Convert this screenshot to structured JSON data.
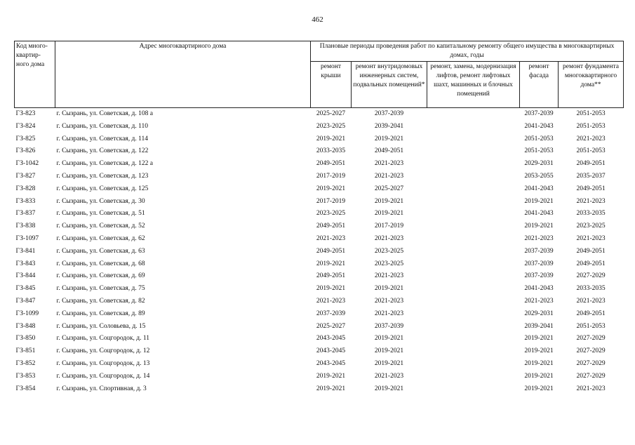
{
  "page_number": "462",
  "header": {
    "code": "Код много-квартир-ного дома",
    "address": "Адрес многоквартирного дома",
    "periods": "Плановые периоды проведения работ по капитальному ремонту общего имущества в многоквартирных домах, годы",
    "roof": "ремонт крыши",
    "engineering": "ремонт внутридомовых инженерных систем, подвальных помещений*",
    "lifts": "ремонт, замена, модернизация лифтов, ремонт лифтовых шахт, машинных и блочных помещений",
    "facade": "ремонт фасада",
    "foundation": "ремонт фундамента многоквартирного дома**"
  },
  "rows": [
    {
      "code": "ГЗ-823",
      "address": "г. Сызрань, ул. Советская, д. 108 а",
      "roof": "2025-2027",
      "eng": "2037-2039",
      "lift": "",
      "facade": "2037-2039",
      "found": "2051-2053"
    },
    {
      "code": "ГЗ-824",
      "address": "г. Сызрань, ул. Советская, д. 110",
      "roof": "2023-2025",
      "eng": "2039-2041",
      "lift": "",
      "facade": "2041-2043",
      "found": "2051-2053"
    },
    {
      "code": "ГЗ-825",
      "address": "г. Сызрань, ул. Советская, д. 114",
      "roof": "2019-2021",
      "eng": "2019-2021",
      "lift": "",
      "facade": "2051-2053",
      "found": "2021-2023"
    },
    {
      "code": "ГЗ-826",
      "address": "г. Сызрань, ул. Советская, д. 122",
      "roof": "2033-2035",
      "eng": "2049-2051",
      "lift": "",
      "facade": "2051-2053",
      "found": "2051-2053"
    },
    {
      "code": "ГЗ-1042",
      "address": "г. Сызрань, ул. Советская, д. 122 а",
      "roof": "2049-2051",
      "eng": "2021-2023",
      "lift": "",
      "facade": "2029-2031",
      "found": "2049-2051"
    },
    {
      "code": "ГЗ-827",
      "address": "г. Сызрань, ул. Советская, д. 123",
      "roof": "2017-2019",
      "eng": "2021-2023",
      "lift": "",
      "facade": "2053-2055",
      "found": "2035-2037"
    },
    {
      "code": "ГЗ-828",
      "address": "г. Сызрань, ул. Советская, д. 125",
      "roof": "2019-2021",
      "eng": "2025-2027",
      "lift": "",
      "facade": "2041-2043",
      "found": "2049-2051"
    },
    {
      "code": "ГЗ-833",
      "address": "г. Сызрань, ул. Советская, д. 30",
      "roof": "2017-2019",
      "eng": "2019-2021",
      "lift": "",
      "facade": "2019-2021",
      "found": "2021-2023"
    },
    {
      "code": "ГЗ-837",
      "address": "г. Сызрань, ул. Советская, д. 51",
      "roof": "2023-2025",
      "eng": "2019-2021",
      "lift": "",
      "facade": "2041-2043",
      "found": "2033-2035"
    },
    {
      "code": "ГЗ-838",
      "address": "г. Сызрань, ул. Советская, д. 52",
      "roof": "2049-2051",
      "eng": "2017-2019",
      "lift": "",
      "facade": "2019-2021",
      "found": "2023-2025"
    },
    {
      "code": "ГЗ-1097",
      "address": "г. Сызрань, ул. Советская, д. 62",
      "roof": "2021-2023",
      "eng": "2021-2023",
      "lift": "",
      "facade": "2021-2023",
      "found": "2021-2023"
    },
    {
      "code": "ГЗ-841",
      "address": "г. Сызрань, ул. Советская, д. 63",
      "roof": "2049-2051",
      "eng": "2023-2025",
      "lift": "",
      "facade": "2037-2039",
      "found": "2049-2051"
    },
    {
      "code": "ГЗ-843",
      "address": "г. Сызрань, ул. Советская, д. 68",
      "roof": "2019-2021",
      "eng": "2023-2025",
      "lift": "",
      "facade": "2037-2039",
      "found": "2049-2051"
    },
    {
      "code": "ГЗ-844",
      "address": "г. Сызрань, ул. Советская, д. 69",
      "roof": "2049-2051",
      "eng": "2021-2023",
      "lift": "",
      "facade": "2037-2039",
      "found": "2027-2029"
    },
    {
      "code": "ГЗ-845",
      "address": "г. Сызрань, ул. Советская, д. 75",
      "roof": "2019-2021",
      "eng": "2019-2021",
      "lift": "",
      "facade": "2041-2043",
      "found": "2033-2035"
    },
    {
      "code": "ГЗ-847",
      "address": "г. Сызрань, ул. Советская, д. 82",
      "roof": "2021-2023",
      "eng": "2021-2023",
      "lift": "",
      "facade": "2021-2023",
      "found": "2021-2023"
    },
    {
      "code": "ГЗ-1099",
      "address": "г. Сызрань, ул. Советская, д. 89",
      "roof": "2037-2039",
      "eng": "2021-2023",
      "lift": "",
      "facade": "2029-2031",
      "found": "2049-2051"
    },
    {
      "code": "ГЗ-848",
      "address": "г. Сызрань, ул. Соловьева, д. 15",
      "roof": "2025-2027",
      "eng": "2037-2039",
      "lift": "",
      "facade": "2039-2041",
      "found": "2051-2053"
    },
    {
      "code": "ГЗ-850",
      "address": "г. Сызрань, ул. Соцгородок, д. 11",
      "roof": "2043-2045",
      "eng": "2019-2021",
      "lift": "",
      "facade": "2019-2021",
      "found": "2027-2029"
    },
    {
      "code": "ГЗ-851",
      "address": "г. Сызрань, ул. Соцгородок, д. 12",
      "roof": "2043-2045",
      "eng": "2019-2021",
      "lift": "",
      "facade": "2019-2021",
      "found": "2027-2029"
    },
    {
      "code": "ГЗ-852",
      "address": "г. Сызрань, ул. Соцгородок, д. 13",
      "roof": "2043-2045",
      "eng": "2019-2021",
      "lift": "",
      "facade": "2019-2021",
      "found": "2027-2029"
    },
    {
      "code": "ГЗ-853",
      "address": "г. Сызрань, ул. Соцгородок, д. 14",
      "roof": "2019-2021",
      "eng": "2021-2023",
      "lift": "",
      "facade": "2019-2021",
      "found": "2027-2029"
    },
    {
      "code": "ГЗ-854",
      "address": "г. Сызрань, ул. Спортивная, д. 3",
      "roof": "2019-2021",
      "eng": "2019-2021",
      "lift": "",
      "facade": "2019-2021",
      "found": "2021-2023"
    }
  ]
}
